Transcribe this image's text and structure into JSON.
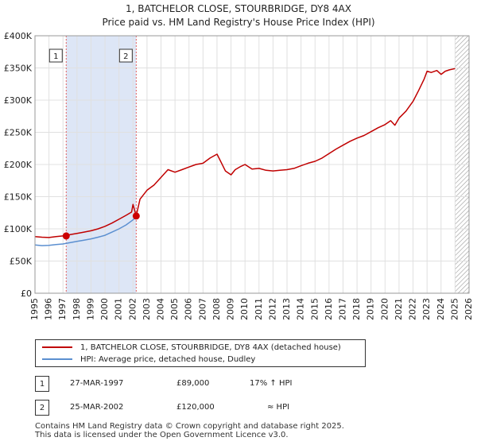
{
  "chart_data": {
    "type": "line",
    "title": "1, BATCHELOR CLOSE, STOURBRIDGE, DY8 4AX",
    "subtitle": "Price paid vs. HM Land Registry's House Price Index (HPI)",
    "xlabel": "",
    "ylabel": "",
    "xlim": [
      1995,
      2026
    ],
    "ylim": [
      0,
      400000
    ],
    "y_ticks": [
      0,
      50000,
      100000,
      150000,
      200000,
      250000,
      300000,
      350000,
      400000
    ],
    "y_tick_labels": [
      "£0",
      "£50K",
      "£100K",
      "£150K",
      "£200K",
      "£250K",
      "£300K",
      "£350K",
      "£400K"
    ],
    "x_ticks": [
      1995,
      1996,
      1997,
      1998,
      1999,
      2000,
      2001,
      2002,
      2003,
      2004,
      2005,
      2006,
      2007,
      2008,
      2009,
      2010,
      2011,
      2012,
      2013,
      2014,
      2015,
      2016,
      2017,
      2018,
      2019,
      2020,
      2021,
      2022,
      2023,
      2024,
      2025,
      2026
    ],
    "x_tick_labels": [
      "1995",
      "1996",
      "1997",
      "1998",
      "1999",
      "2000",
      "2001",
      "2002",
      "2003",
      "2004",
      "2005",
      "2006",
      "2007",
      "2008",
      "2009",
      "2010",
      "2011",
      "2012",
      "2013",
      "2014",
      "2015",
      "2016",
      "2017",
      "2018",
      "2019",
      "2020",
      "2021",
      "2022",
      "2023",
      "2024",
      "2025",
      "2026"
    ],
    "grid": true,
    "shaded_period": {
      "start": 1997.23,
      "end": 2002.23,
      "color": "#dde6f6"
    },
    "forecast_hatch_start": 2025.0,
    "series": [
      {
        "name": "1, BATCHELOR CLOSE, STOURBRIDGE, DY8 4AX (detached house)",
        "color": "#c00000",
        "x": [
          1995.0,
          1995.5,
          1996.0,
          1996.5,
          1997.0,
          1997.23,
          1997.5,
          1998.0,
          1998.5,
          1999.0,
          1999.5,
          2000.0,
          2000.5,
          2001.0,
          2001.5,
          2001.9,
          2002.0,
          2002.23,
          2002.5,
          2003.0,
          2003.5,
          2004.0,
          2004.5,
          2005.0,
          2005.5,
          2006.0,
          2006.5,
          2007.0,
          2007.5,
          2008.0,
          2008.3,
          2008.6,
          2009.0,
          2009.3,
          2009.7,
          2010.0,
          2010.5,
          2011.0,
          2011.5,
          2012.0,
          2012.5,
          2013.0,
          2013.5,
          2014.0,
          2014.5,
          2015.0,
          2015.5,
          2016.0,
          2016.5,
          2017.0,
          2017.5,
          2018.0,
          2018.5,
          2019.0,
          2019.5,
          2020.0,
          2020.4,
          2020.7,
          2021.0,
          2021.5,
          2022.0,
          2022.4,
          2022.8,
          2023.0,
          2023.3,
          2023.7,
          2024.0,
          2024.3,
          2024.6,
          2025.0
        ],
        "values": [
          88000,
          87000,
          86500,
          88000,
          89000,
          89000,
          91000,
          93000,
          95000,
          97000,
          100000,
          104000,
          109000,
          115000,
          121000,
          126000,
          138000,
          120000,
          146000,
          160000,
          168000,
          180000,
          192000,
          188000,
          192000,
          196000,
          200000,
          202000,
          210000,
          216000,
          203000,
          190000,
          184000,
          192000,
          197000,
          200000,
          193000,
          194000,
          191000,
          190000,
          191000,
          192000,
          194000,
          198000,
          202000,
          205000,
          210000,
          217000,
          224000,
          230000,
          236000,
          241000,
          245000,
          251000,
          257000,
          262000,
          268000,
          261000,
          272000,
          283000,
          298000,
          315000,
          333000,
          345000,
          343000,
          346000,
          340000,
          345000,
          347000,
          349000
        ]
      },
      {
        "name": "HPI: Average price, detached house, Dudley",
        "color": "#5b8fd0",
        "x": [
          1995.0,
          1995.5,
          1996.0,
          1996.5,
          1997.0,
          1997.5,
          1998.0,
          1998.5,
          1999.0,
          1999.5,
          2000.0,
          2000.5,
          2001.0,
          2001.5,
          2002.0,
          2002.23
        ],
        "values": [
          75000,
          74000,
          74500,
          75500,
          76500,
          78500,
          80500,
          82500,
          84500,
          87000,
          90000,
          95000,
          100000,
          106000,
          114000,
          120000
        ]
      }
    ],
    "sales": [
      {
        "label": "1",
        "x": 1997.23,
        "value": 89000
      },
      {
        "label": "2",
        "x": 2002.23,
        "value": 120000
      }
    ]
  },
  "legend": {
    "line1": "1, BATCHELOR CLOSE, STOURBRIDGE, DY8 4AX (detached house)",
    "line2": "HPI: Average price, detached house, Dudley"
  },
  "transactions": [
    {
      "num": "1",
      "date": "27-MAR-1997",
      "price": "£89,000",
      "hpi": "17% ↑ HPI"
    },
    {
      "num": "2",
      "date": "25-MAR-2002",
      "price": "£120,000",
      "hpi": "≈ HPI"
    }
  ],
  "footer": {
    "line1": "Contains HM Land Registry data © Crown copyright and database right 2025.",
    "line2": "This data is licensed under the Open Government Licence v3.0."
  }
}
